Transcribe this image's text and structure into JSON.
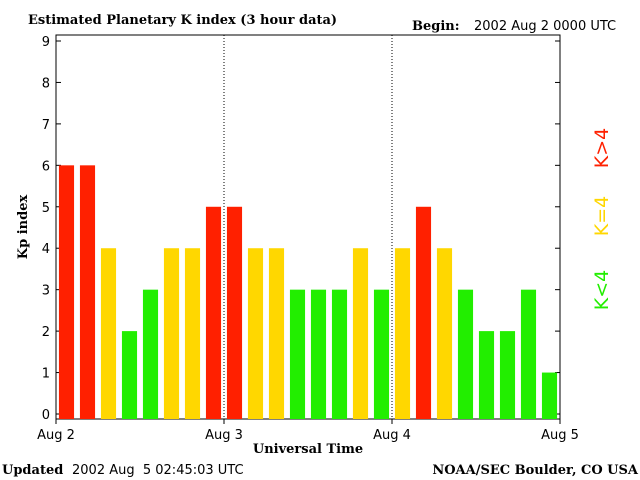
{
  "chart_data": {
    "type": "bar",
    "title": "Estimated Planetary K index (3 hour data)",
    "begin_label": "Begin:",
    "begin_value": "2002 Aug 2 0000 UTC",
    "ylabel": "Kp index",
    "xlabel": "Universal Time",
    "ylim": [
      0,
      9
    ],
    "yticks": [
      "0",
      "1",
      "2",
      "3",
      "4",
      "5",
      "6",
      "7",
      "8",
      "9"
    ],
    "x_tick_labels": [
      "Aug 2",
      "Aug 3",
      "Aug 4",
      "Aug 5"
    ],
    "values": [
      6,
      6,
      4,
      2,
      3,
      4,
      4,
      5,
      5,
      4,
      4,
      3,
      3,
      3,
      4,
      3,
      4,
      5,
      4,
      3,
      2,
      2,
      3,
      1
    ],
    "legend": {
      "high": {
        "label": "K>4",
        "color": "#ff2000"
      },
      "mid": {
        "label": "K=4",
        "color": "#ffd700"
      },
      "low": {
        "label": "K<4",
        "color": "#22ee00"
      }
    }
  },
  "footer": {
    "updated_label": "Updated",
    "updated_value": "2002 Aug  5 02:45:03 UTC",
    "source": "NOAA/SEC Boulder, CO USA"
  }
}
